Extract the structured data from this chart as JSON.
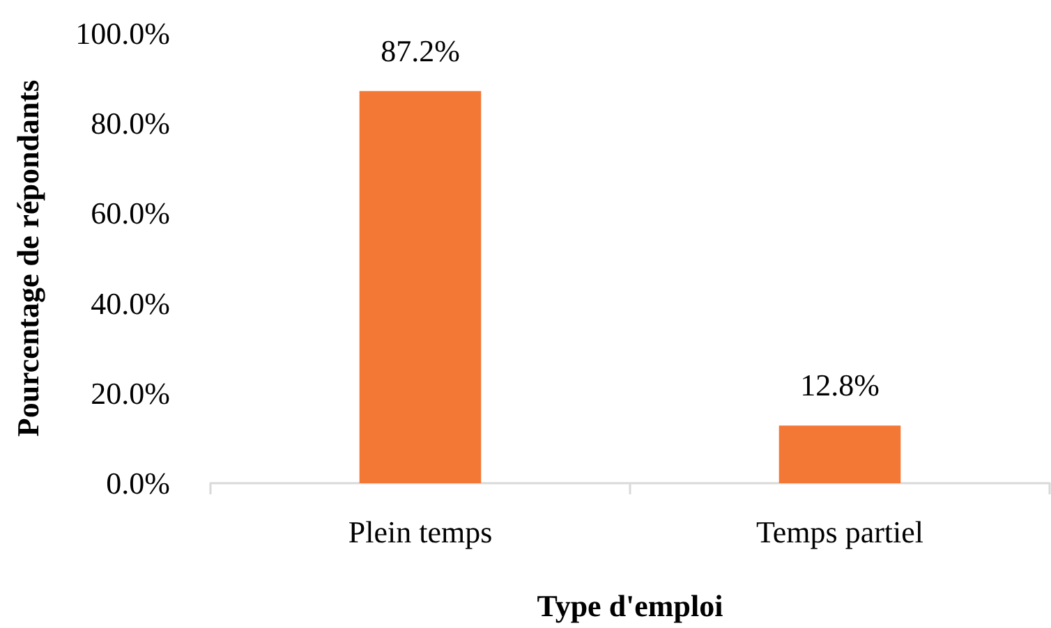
{
  "chart_data": {
    "type": "bar",
    "xlabel": "Type d'emploi",
    "ylabel": "Pourcentage de répondants",
    "categories": [
      "Plein temps",
      "Temps partiel"
    ],
    "values": [
      87.2,
      12.8
    ],
    "value_labels": [
      "87.2%",
      "12.8%"
    ],
    "color": "#f37735",
    "ylim": [
      0,
      100
    ],
    "yticks": [
      {
        "value": 0,
        "label": "0.0%"
      },
      {
        "value": 20,
        "label": "20.0%"
      },
      {
        "value": 40,
        "label": "40.0%"
      },
      {
        "value": 60,
        "label": "60.0%"
      },
      {
        "value": 80,
        "label": "80.0%"
      },
      {
        "value": 100,
        "label": "100.0%"
      }
    ],
    "grid": false
  }
}
